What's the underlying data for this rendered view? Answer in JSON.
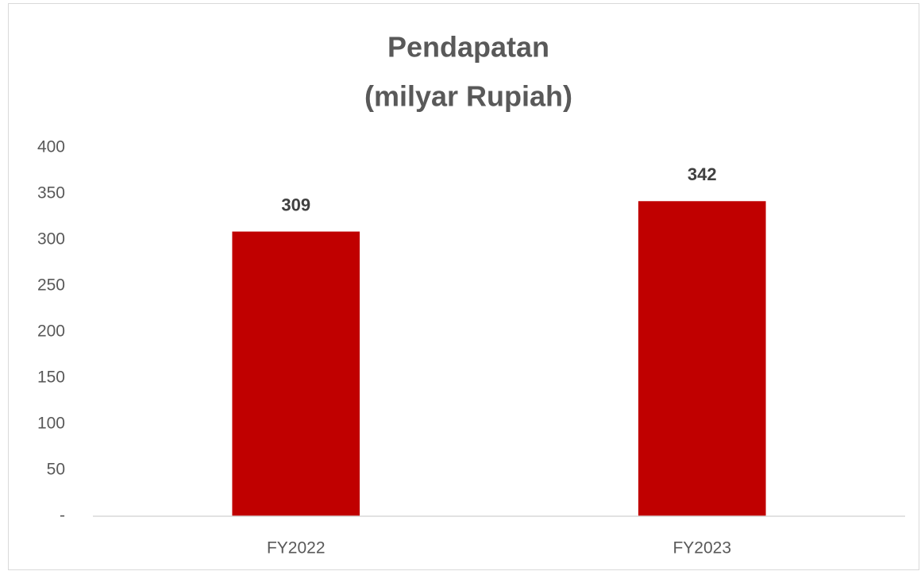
{
  "chart_data": {
    "type": "bar",
    "title": [
      "Pendapatan",
      "(milyar Rupiah)"
    ],
    "categories": [
      "FY2022",
      "FY2023"
    ],
    "values": [
      309,
      342
    ],
    "color": "#c00000",
    "ylim": [
      0,
      400
    ],
    "yticks": [
      {
        "value": 0,
        "label": "-"
      },
      50,
      100,
      150,
      200,
      250,
      300,
      350,
      400
    ],
    "grid": false
  }
}
